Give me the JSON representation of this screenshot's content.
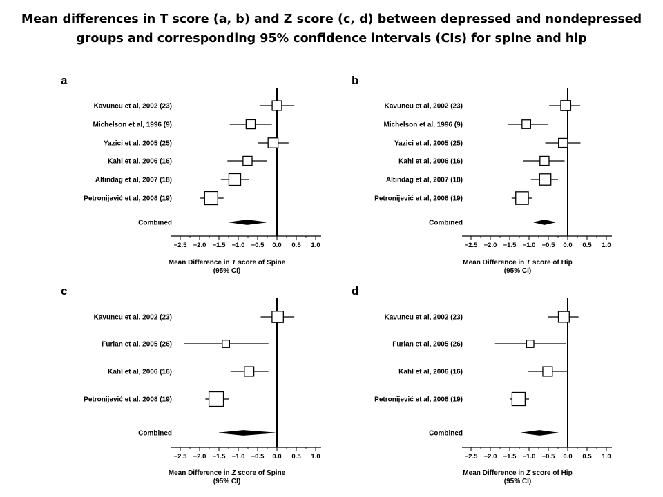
{
  "title": {
    "line1": "Mean differences in T score (a, b) and Z score (c, d) between depressed and nondepressed",
    "line2": "groups and corresponding 95% confidence intervals (CIs) for spine and hip"
  },
  "chart_data": [
    {
      "type": "forest",
      "panel": "a",
      "xlabel_pre": "Mean Difference in ",
      "xlabel_var": "T",
      "xlabel_post": " score of Spine",
      "xlabel_line2": "(95% CI)",
      "xlim": [
        -2.6,
        1.1
      ],
      "ticks": [
        -2.5,
        -2.0,
        -1.5,
        -1.0,
        -0.5,
        0.0,
        0.5,
        1.0
      ],
      "tick_labels": [
        "−2.5",
        "−2.0",
        "−1.5",
        "−1.0",
        "−0.5",
        "0.0",
        "0.5",
        "1.0"
      ],
      "studies": [
        {
          "label": "Kavuncu et al, 2002 (23)",
          "mean": 0.0,
          "lo": -0.45,
          "hi": 0.45,
          "weight": 0.6
        },
        {
          "label": "Michelson et al, 1996 (9)",
          "mean": -0.68,
          "lo": -1.22,
          "hi": -0.13,
          "weight": 0.55
        },
        {
          "label": "Yazici et al, 2005 (25)",
          "mean": -0.1,
          "lo": -0.5,
          "hi": 0.3,
          "weight": 0.65
        },
        {
          "label": "Kahl et al, 2006 (16)",
          "mean": -0.76,
          "lo": -1.28,
          "hi": -0.25,
          "weight": 0.55
        },
        {
          "label": "Altindag et al, 2007 (18)",
          "mean": -1.09,
          "lo": -1.45,
          "hi": -0.73,
          "weight": 0.85
        },
        {
          "label": "Petronijević et al, 2008 (19)",
          "mean": -1.7,
          "lo": -1.98,
          "hi": -1.38,
          "weight": 1.0
        }
      ],
      "combined": {
        "label": "Combined",
        "mean": -0.77,
        "lo": -1.23,
        "hi": -0.28
      }
    },
    {
      "type": "forest",
      "panel": "b",
      "xlabel_pre": "Mean Difference in ",
      "xlabel_var": "T",
      "xlabel_post": " score of Hip",
      "xlabel_line2": "(95% CI)",
      "xlim": [
        -2.6,
        1.1
      ],
      "ticks": [
        -2.5,
        -2.0,
        -1.5,
        -1.0,
        -0.5,
        0.0,
        0.5,
        1.0
      ],
      "tick_labels": [
        "−2.5",
        "−2.0",
        "−1.5",
        "−1.0",
        "−0.5",
        "0.0",
        "0.5",
        "1.0"
      ],
      "studies": [
        {
          "label": "Kavuncu et al, 2002 (23)",
          "mean": -0.05,
          "lo": -0.48,
          "hi": 0.32,
          "weight": 0.65
        },
        {
          "label": "Michelson et al, 1996 (9)",
          "mean": -1.07,
          "lo": -1.55,
          "hi": -0.52,
          "weight": 0.5
        },
        {
          "label": "Yazici et al, 2005 (25)",
          "mean": -0.12,
          "lo": -0.58,
          "hi": 0.33,
          "weight": 0.55
        },
        {
          "label": "Kahl et al, 2006 (16)",
          "mean": -0.6,
          "lo": -1.15,
          "hi": -0.08,
          "weight": 0.55
        },
        {
          "label": "Altindag et al, 2007 (18)",
          "mean": -0.58,
          "lo": -0.95,
          "hi": -0.25,
          "weight": 0.8
        },
        {
          "label": "Petronijević et al, 2008 (19)",
          "mean": -1.18,
          "lo": -1.45,
          "hi": -0.92,
          "weight": 0.95
        }
      ],
      "combined": {
        "label": "Combined",
        "mean": -0.6,
        "lo": -0.88,
        "hi": -0.32
      }
    },
    {
      "type": "forest",
      "panel": "c",
      "xlabel_pre": "Mean Difference in ",
      "xlabel_var": "Z",
      "xlabel_post": " score of Spine",
      "xlabel_line2": "(95% CI)",
      "xlim": [
        -2.6,
        1.1
      ],
      "ticks": [
        -2.5,
        -2.0,
        -1.5,
        -1.0,
        -0.5,
        0.0,
        0.5,
        1.0
      ],
      "tick_labels": [
        "−2.5",
        "−2.0",
        "−1.5",
        "−1.0",
        "−0.5",
        "0.0",
        "0.5",
        "1.0"
      ],
      "studies": [
        {
          "label": "Kavuncu et al, 2002 (23)",
          "mean": 0.02,
          "lo": -0.42,
          "hi": 0.45,
          "weight": 0.8
        },
        {
          "label": "Furlan et al, 2005 (26)",
          "mean": -1.32,
          "lo": -2.4,
          "hi": -0.22,
          "weight": 0.35
        },
        {
          "label": "Kahl et al, 2006 (16)",
          "mean": -0.72,
          "lo": -1.2,
          "hi": -0.22,
          "weight": 0.6
        },
        {
          "label": "Petronijević et al, 2008 (19)",
          "mean": -1.57,
          "lo": -1.85,
          "hi": -1.25,
          "weight": 1.15
        }
      ],
      "combined": {
        "label": "Combined",
        "mean": -0.87,
        "lo": -1.5,
        "hi": -0.05
      }
    },
    {
      "type": "forest",
      "panel": "d",
      "xlabel_pre": "Mean Difference in ",
      "xlabel_var": "Z",
      "xlabel_post": " score of Hip",
      "xlabel_line2": "(95% CI)",
      "xlim": [
        -2.6,
        1.1
      ],
      "ticks": [
        -2.5,
        -2.0,
        -1.5,
        -1.0,
        -0.5,
        0.0,
        0.5,
        1.0
      ],
      "tick_labels": [
        "−2.5",
        "−2.0",
        "−1.5",
        "−1.0",
        "−0.5",
        "0.0",
        "0.5",
        "1.0"
      ],
      "studies": [
        {
          "label": "Kavuncu et al, 2002 (23)",
          "mean": -0.1,
          "lo": -0.5,
          "hi": 0.28,
          "weight": 0.75
        },
        {
          "label": "Furlan et al, 2005 (26)",
          "mean": -0.97,
          "lo": -1.88,
          "hi": -0.05,
          "weight": 0.35
        },
        {
          "label": "Kahl et al, 2006 (16)",
          "mean": -0.52,
          "lo": -1.02,
          "hi": -0.02,
          "weight": 0.6
        },
        {
          "label": "Petronijević et al, 2008 (19)",
          "mean": -1.27,
          "lo": -1.5,
          "hi": -1.0,
          "weight": 1.0
        }
      ],
      "combined": {
        "label": "Combined",
        "mean": -0.73,
        "lo": -1.2,
        "hi": -0.25
      }
    }
  ]
}
